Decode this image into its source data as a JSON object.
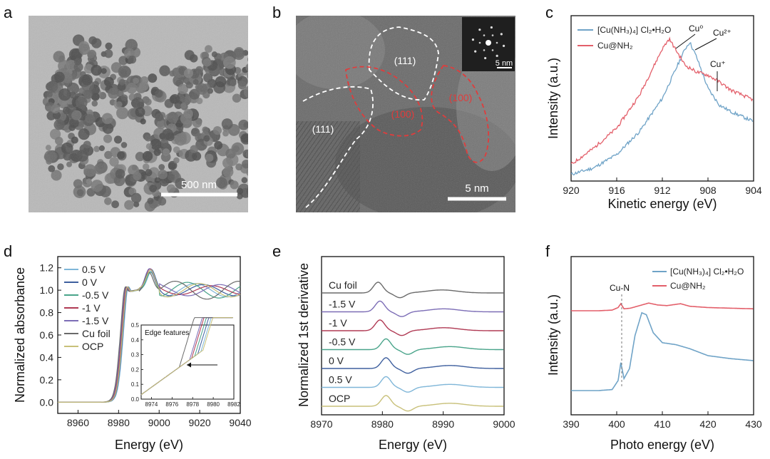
{
  "panel_labels": [
    "a",
    "b",
    "c",
    "d",
    "e",
    "f"
  ],
  "panel_a": {
    "scale_bar": "500 nm"
  },
  "panel_b": {
    "regions": [
      "(111)",
      "(111)",
      "(100)",
      "(100)"
    ],
    "scale_bar": "5 nm",
    "inset_scale_bar": "5 nm"
  },
  "chart_data": [
    {
      "panel": "c",
      "type": "line",
      "xlabel": "Kinetic energy (eV)",
      "ylabel": "Intensity (a.u.)",
      "xlim": [
        920,
        904
      ],
      "x_reversed": true,
      "xticks": [
        920,
        916,
        912,
        908,
        904
      ],
      "annotations": [
        "Cu⁰",
        "Cu²⁺",
        "Cu⁺"
      ],
      "legend_position": "top-left",
      "colors": {
        "red": "#e35f6a",
        "blue": "#6fa3c7"
      },
      "series": [
        {
          "name": "[Cu(NH₃)₄] Cl₂•H₂O",
          "color": "#6fa3c7",
          "x": [
            920,
            918,
            916,
            914,
            912,
            911,
            910,
            909.6,
            909,
            908,
            907,
            906,
            905,
            904
          ],
          "y": [
            0.04,
            0.08,
            0.16,
            0.3,
            0.5,
            0.65,
            0.8,
            0.84,
            0.75,
            0.56,
            0.46,
            0.42,
            0.39,
            0.36
          ]
        },
        {
          "name": "Cu@NH₂",
          "color": "#e35f6a",
          "x": [
            920,
            918,
            916,
            914,
            913,
            912,
            911.4,
            910,
            909,
            908,
            907,
            906,
            905,
            904
          ],
          "y": [
            0.1,
            0.2,
            0.32,
            0.52,
            0.66,
            0.8,
            0.86,
            0.7,
            0.66,
            0.64,
            0.6,
            0.55,
            0.52,
            0.49
          ]
        }
      ]
    },
    {
      "panel": "d",
      "type": "line",
      "xlabel": "Energy (eV)",
      "ylabel": "Normalized absorbance",
      "xlim": [
        8950,
        9040
      ],
      "ylim": [
        -0.1,
        1.3
      ],
      "xticks": [
        8960,
        8980,
        9000,
        9020,
        9040
      ],
      "yticks": [
        0.0,
        0.2,
        0.4,
        0.6,
        0.8,
        1.0,
        1.2
      ],
      "legend_position": "top-left",
      "series": [
        {
          "name": "0.5 V",
          "color": "#7fb6d8"
        },
        {
          "name": "0 V",
          "color": "#3e5f9e"
        },
        {
          "name": "-0.5 V",
          "color": "#49a48a"
        },
        {
          "name": "-1 V",
          "color": "#b03a54"
        },
        {
          "name": "-1.5 V",
          "color": "#7c6db6"
        },
        {
          "name": "Cu foil",
          "color": "#6a6a6a"
        },
        {
          "name": "OCP",
          "color": "#c8c079"
        }
      ],
      "inset": {
        "title": "Edge features",
        "xlim": [
          8973,
          8982
        ],
        "ylim": [
          0.0,
          0.5
        ],
        "xticks": [
          8974,
          8976,
          8978,
          8980,
          8982
        ],
        "yticks": [
          0.0,
          0.1,
          0.2,
          0.3,
          0.4,
          0.5
        ]
      }
    },
    {
      "panel": "e",
      "type": "line",
      "xlabel": "Energy (eV)",
      "ylabel": "Normalized 1st derivative",
      "xlim": [
        8970,
        9000
      ],
      "xticks": [
        8970,
        8980,
        8990,
        9000
      ],
      "series": [
        {
          "name": "Cu foil",
          "color": "#6a6a6a"
        },
        {
          "name": "-1.5 V",
          "color": "#7c6db6"
        },
        {
          "name": "-1 V",
          "color": "#b03a54"
        },
        {
          "name": "-0.5 V",
          "color": "#49a48a"
        },
        {
          "name": "0 V",
          "color": "#3e5f9e"
        },
        {
          "name": "0.5 V",
          "color": "#7fb6d8"
        },
        {
          "name": "OCP",
          "color": "#c8c079"
        }
      ]
    },
    {
      "panel": "f",
      "type": "line",
      "xlabel": "Photo energy (eV)",
      "ylabel": "Intensity (a.u.)",
      "xlim": [
        390,
        430
      ],
      "xticks": [
        390,
        400,
        410,
        420,
        430
      ],
      "annotations": [
        "Cu-N"
      ],
      "legend_position": "top-right",
      "series": [
        {
          "name": "[Cu(NH₃)₄] Cl₂•H₂O",
          "color": "#6fa3c7",
          "x": [
            390,
            396,
            399,
            400.3,
            400.9,
            401.6,
            402.8,
            404,
            405.5,
            406.5,
            408,
            410,
            413,
            416,
            420,
            425,
            430
          ],
          "y": [
            0.0,
            0.0,
            0.01,
            0.1,
            0.28,
            0.12,
            0.22,
            0.55,
            0.78,
            0.76,
            0.58,
            0.48,
            0.46,
            0.42,
            0.35,
            0.32,
            0.3
          ]
        },
        {
          "name": "Cu@NH₂",
          "color": "#e35f6a",
          "x": [
            390,
            396,
            399,
            400.3,
            400.9,
            401.6,
            403,
            405,
            407,
            409,
            411,
            414,
            416,
            420,
            425,
            430
          ],
          "y": [
            0.0,
            0.0,
            0.01,
            0.05,
            0.11,
            0.03,
            0.04,
            0.08,
            0.12,
            0.09,
            0.08,
            0.11,
            0.07,
            0.05,
            0.04,
            0.03
          ]
        }
      ]
    }
  ]
}
